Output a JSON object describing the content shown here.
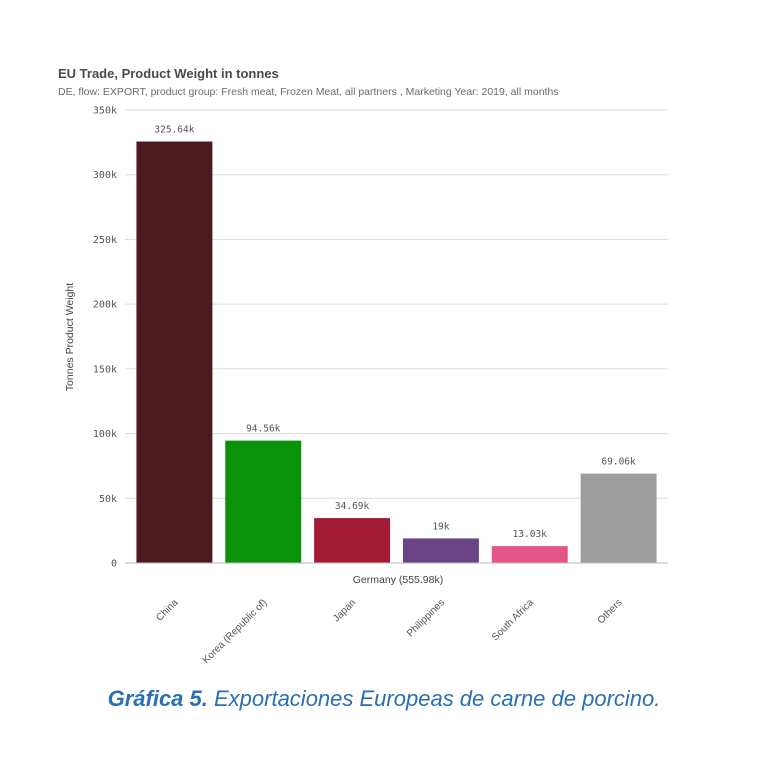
{
  "chart_data": {
    "type": "bar",
    "title": "EU Trade, Product Weight in tonnes",
    "subtitle": "DE, flow: EXPORT, product group: Fresh meat, Frozen Meat, all partners , Marketing Year: 2019, all months",
    "ylabel": "Tonnes Product Weight",
    "xlabel": "Germany (555.98k)",
    "ylim": [
      0,
      350000
    ],
    "yticks": [
      0,
      50000,
      100000,
      150000,
      200000,
      250000,
      300000,
      350000
    ],
    "ytick_labels": [
      "0",
      "50k",
      "100k",
      "150k",
      "200k",
      "250k",
      "300k",
      "350k"
    ],
    "grid": true,
    "categories": [
      "China",
      "Korea (Republic of)",
      "Japan",
      "Philippines",
      "South Africa",
      "Others"
    ],
    "values": [
      325640,
      94560,
      34690,
      19000,
      13030,
      69060
    ],
    "value_labels": [
      "325.64k",
      "94.56k",
      "34.69k",
      "19k",
      "13.03k",
      "69.06k"
    ],
    "colors": [
      "#4a1a1f",
      "#0a920a",
      "#a31b33",
      "#6a4384",
      "#e2568a",
      "#9e9e9e"
    ]
  },
  "caption": {
    "bold": "Gráfica 5.",
    "text": " Exportaciones Europeas de carne de porcino."
  }
}
